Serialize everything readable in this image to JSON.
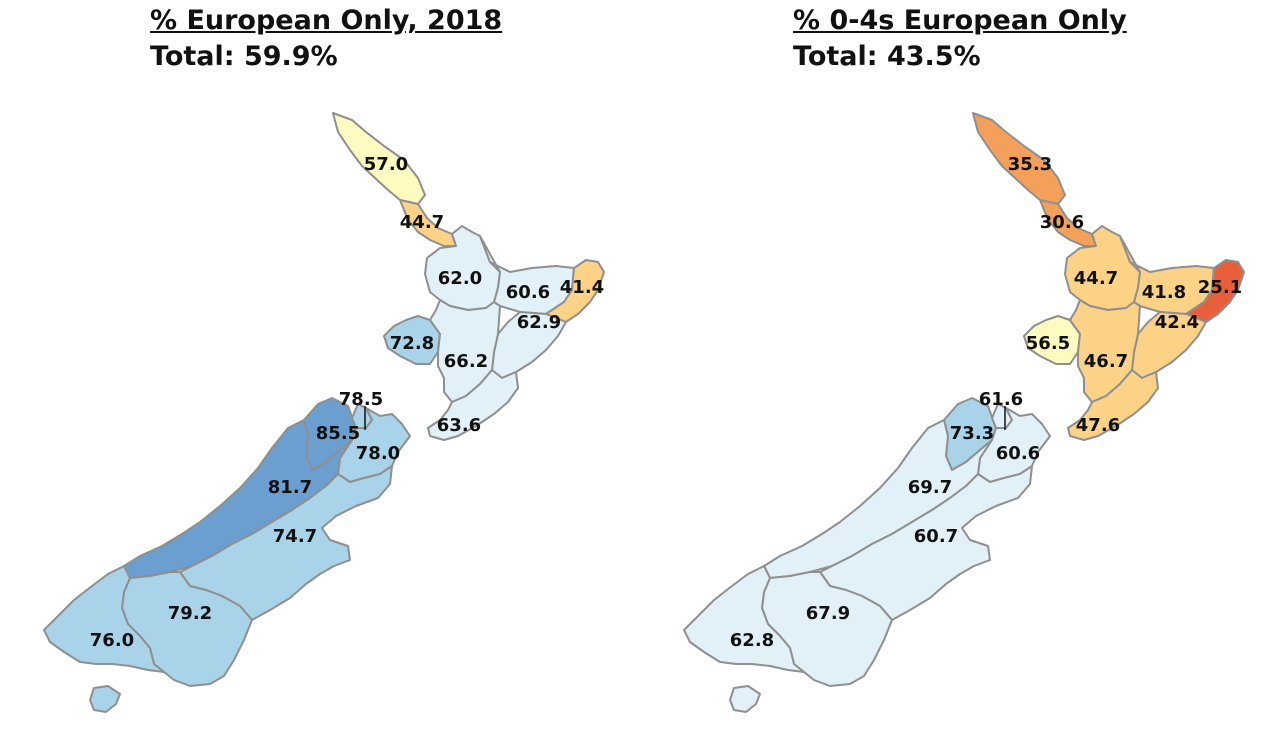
{
  "colors": {
    "blue_dark": "#6a9fcf",
    "blue_mid": "#a9d3e8",
    "blue_light": "#e2f1f8",
    "yellow_pale": "#fdfbc0",
    "orange_light": "#fcd287",
    "orange_mid": "#f4a05a",
    "red": "#e85f3c",
    "border": "#8f8f8f"
  },
  "maps": [
    {
      "title": "% European Only, 2018",
      "subtitle": "Total: 59.9%",
      "regions": {
        "northland": {
          "value": "57.0",
          "color": "#fdfbc0"
        },
        "auckland": {
          "value": "44.7",
          "color": "#fcd287"
        },
        "waikato": {
          "value": "62.0",
          "color": "#e2f1f8"
        },
        "bay_of_plenty": {
          "value": "60.6",
          "color": "#e2f1f8"
        },
        "gisborne": {
          "value": "41.4",
          "color": "#fcd287"
        },
        "hawkes_bay": {
          "value": "62.9",
          "color": "#e2f1f8"
        },
        "taranaki": {
          "value": "72.8",
          "color": "#a9d3e8"
        },
        "manawatu": {
          "value": "66.2",
          "color": "#e2f1f8"
        },
        "wellington": {
          "value": "63.6",
          "color": "#e2f1f8"
        },
        "nelson": {
          "value": "78.5",
          "color": "#a9d3e8"
        },
        "tasman": {
          "value": "85.5",
          "color": "#6a9fcf"
        },
        "marlborough": {
          "value": "78.0",
          "color": "#a9d3e8"
        },
        "west_coast": {
          "value": "81.7",
          "color": "#6a9fcf"
        },
        "canterbury": {
          "value": "74.7",
          "color": "#a9d3e8"
        },
        "otago": {
          "value": "79.2",
          "color": "#a9d3e8"
        },
        "southland": {
          "value": "76.0",
          "color": "#a9d3e8"
        }
      }
    },
    {
      "title": "% 0-4s European Only",
      "subtitle": "Total: 43.5%",
      "regions": {
        "northland": {
          "value": "35.3",
          "color": "#f4a05a"
        },
        "auckland": {
          "value": "30.6",
          "color": "#f4a05a"
        },
        "waikato": {
          "value": "44.7",
          "color": "#fcd287"
        },
        "bay_of_plenty": {
          "value": "41.8",
          "color": "#fcd287"
        },
        "gisborne": {
          "value": "25.1",
          "color": "#e85f3c"
        },
        "hawkes_bay": {
          "value": "42.4",
          "color": "#fcd287"
        },
        "taranaki": {
          "value": "56.5",
          "color": "#fdfbc0"
        },
        "manawatu": {
          "value": "46.7",
          "color": "#fcd287"
        },
        "wellington": {
          "value": "47.6",
          "color": "#fcd287"
        },
        "nelson": {
          "value": "61.6",
          "color": "#e2f1f8"
        },
        "tasman": {
          "value": "73.3",
          "color": "#a9d3e8"
        },
        "marlborough": {
          "value": "60.6",
          "color": "#e2f1f8"
        },
        "west_coast": {
          "value": "69.7",
          "color": "#e2f1f8"
        },
        "canterbury": {
          "value": "60.7",
          "color": "#e2f1f8"
        },
        "otago": {
          "value": "67.9",
          "color": "#e2f1f8"
        },
        "southland": {
          "value": "62.8",
          "color": "#e2f1f8"
        }
      }
    }
  ]
}
